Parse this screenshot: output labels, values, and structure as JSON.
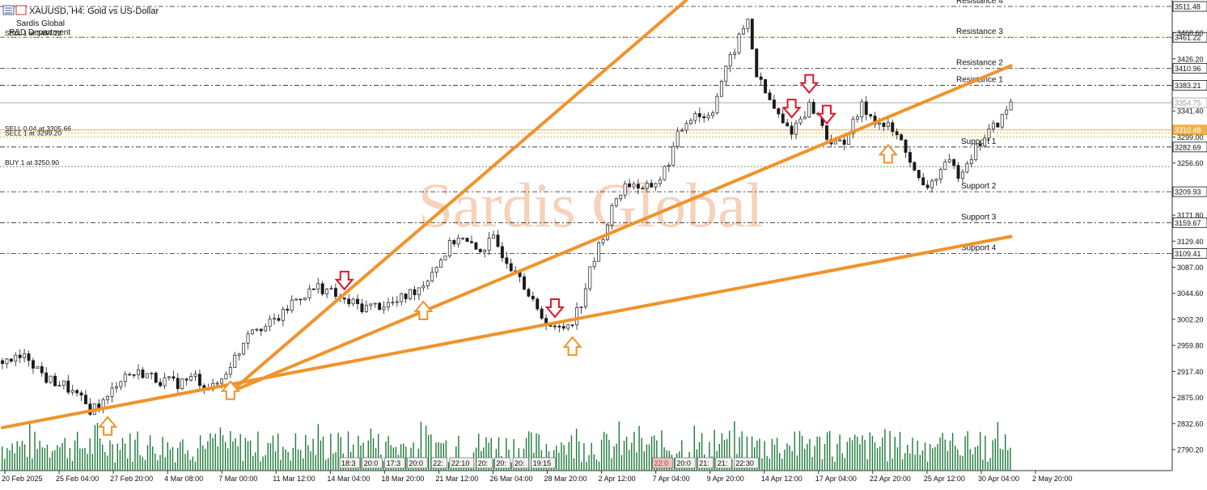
{
  "header": {
    "title": "XAUUSD, H4:  Gold vs US-Dollar",
    "company": "Sardis Global",
    "department": "R&D Department"
  },
  "watermark": "Sardis Global",
  "colors": {
    "trendline": "#f0932b",
    "arrow_down": "#e3142a",
    "arrow_up": "#f0932b",
    "candle": "#1a1a1a",
    "volume": "#1f7a3a",
    "watermark": "#f6d2bc"
  },
  "trade_labels": [
    {
      "text": "SELL 1 at 3454.22",
      "price": 3461.22
    },
    {
      "text": "SELL 0.04 at 3305.66",
      "price": 3306
    },
    {
      "text": "SELL 1 at 3299.20",
      "price": 3299.2
    },
    {
      "text": "BUY 1 at 3250.90",
      "price": 3250.9
    }
  ],
  "levels": [
    {
      "label": "Resistance 4",
      "price": 3511.48,
      "tag": "3511.48"
    },
    {
      "label": "Resistance 3",
      "price": 3461.22,
      "tag": "3461.22"
    },
    {
      "label": "Resistance 2",
      "price": 3410.96,
      "tag": "3410.96"
    },
    {
      "label": "Resistance 1",
      "price": 3383.21,
      "tag": "3383.21"
    },
    {
      "label": "Support 1",
      "price": 3282.69,
      "tag": "3282.69"
    },
    {
      "label": "Support 2",
      "price": 3209.93,
      "tag": "3209.93"
    },
    {
      "label": "Support 3",
      "price": 3159.67,
      "tag": "3159.67"
    },
    {
      "label": "Support 4",
      "price": 3109.41,
      "tag": "3109.41"
    }
  ],
  "current_price": {
    "price": 3354.75,
    "tag": "3354.75"
  },
  "ask_price": {
    "price": 3310.48,
    "tag": "3310.48"
  },
  "chart_data": {
    "type": "candlestick",
    "symbol": "XAUUSD",
    "timeframe": "H4",
    "ylim": [
      2756,
      3522
    ],
    "y_ticks": [
      2790.2,
      2832.6,
      2875.0,
      2917.4,
      2959.8,
      3002.2,
      3044.6,
      3087.0,
      3129.4,
      3171.8,
      3256.6,
      3299.0,
      3341.4,
      3426.2,
      3468.6
    ],
    "x_labels": [
      "20 Feb 2025",
      "25 Feb 04:00",
      "27 Feb 20:00",
      "4 Mar 08:00",
      "7 Mar 00:00",
      "11 Mar 12:00",
      "14 Mar 04:00",
      "18 Mar 20:00",
      "21 Mar 12:00",
      "26 Mar 04:00",
      "28 Mar 20:00",
      "2 Apr 12:00",
      "7 Apr 04:00",
      "9 Apr 20:00",
      "14 Apr 12:00",
      "17 Apr 04:00",
      "22 Apr 20:00",
      "25 Apr 12:00",
      "30 Apr 04:00",
      "2 May 20:00"
    ],
    "session_labels": [
      "18:3",
      "20:0",
      "17:3",
      "20:0",
      "22:",
      "22:10",
      "20:",
      "20:",
      "20:",
      "19:15",
      "22:0",
      "20:0",
      "21:",
      "21:",
      "22:30"
    ],
    "price_path": [
      [
        0,
        2935
      ],
      [
        3,
        2940
      ],
      [
        5,
        2905
      ],
      [
        7,
        2895
      ],
      [
        9,
        2870
      ],
      [
        10,
        2856
      ],
      [
        12,
        2872
      ],
      [
        13,
        2900
      ],
      [
        14,
        2912
      ],
      [
        16,
        2915
      ],
      [
        18,
        2903
      ],
      [
        20,
        2898
      ],
      [
        22,
        2908
      ],
      [
        23,
        2895
      ],
      [
        24,
        2890
      ],
      [
        25,
        2905
      ],
      [
        26,
        2930
      ],
      [
        27,
        2950
      ],
      [
        28,
        2985
      ],
      [
        29,
        2993
      ],
      [
        30,
        2990
      ],
      [
        32,
        3010
      ],
      [
        33,
        3030
      ],
      [
        34,
        3040
      ],
      [
        35,
        3047
      ],
      [
        36,
        3055
      ],
      [
        37,
        3050
      ],
      [
        38,
        3040
      ],
      [
        39,
        3030
      ],
      [
        40,
        3028
      ],
      [
        41,
        3022
      ],
      [
        43,
        3025
      ],
      [
        45,
        3030
      ],
      [
        46,
        3040
      ],
      [
        48,
        3060
      ],
      [
        49,
        3082
      ],
      [
        50,
        3100
      ],
      [
        51,
        3122
      ],
      [
        52,
        3138
      ],
      [
        53,
        3125
      ],
      [
        54,
        3115
      ],
      [
        55,
        3120
      ],
      [
        56,
        3132
      ],
      [
        57,
        3110
      ],
      [
        58,
        3090
      ],
      [
        59,
        3080
      ],
      [
        60,
        3040
      ],
      [
        61,
        3015
      ],
      [
        62,
        3000
      ],
      [
        63,
        2985
      ],
      [
        64,
        2990
      ],
      [
        65,
        3002
      ],
      [
        66,
        3030
      ],
      [
        67,
        3080
      ],
      [
        68,
        3120
      ],
      [
        69,
        3160
      ],
      [
        70,
        3200
      ],
      [
        71,
        3220
      ],
      [
        72,
        3225
      ],
      [
        73,
        3210
      ],
      [
        74,
        3220
      ],
      [
        75,
        3232
      ],
      [
        76,
        3260
      ],
      [
        77,
        3300
      ],
      [
        78,
        3325
      ],
      [
        79,
        3340
      ],
      [
        80,
        3330
      ],
      [
        81,
        3345
      ],
      [
        82,
        3390
      ],
      [
        83,
        3425
      ],
      [
        84,
        3460
      ],
      [
        85,
        3490
      ],
      [
        86,
        3400
      ],
      [
        87,
        3370
      ],
      [
        88,
        3345
      ],
      [
        89,
        3320
      ],
      [
        90,
        3310
      ],
      [
        91,
        3330
      ],
      [
        92,
        3350
      ],
      [
        93,
        3335
      ],
      [
        94,
        3300
      ],
      [
        95,
        3285
      ],
      [
        96,
        3295
      ],
      [
        97,
        3320
      ],
      [
        98,
        3348
      ],
      [
        99,
        3335
      ],
      [
        100,
        3320
      ],
      [
        101,
        3315
      ],
      [
        102,
        3300
      ],
      [
        103,
        3280
      ],
      [
        104,
        3240
      ],
      [
        105,
        3215
      ],
      [
        106,
        3225
      ],
      [
        107,
        3245
      ],
      [
        108,
        3255
      ],
      [
        109,
        3240
      ],
      [
        110,
        3260
      ],
      [
        111,
        3280
      ],
      [
        112,
        3300
      ],
      [
        113,
        3315
      ],
      [
        114,
        3330
      ],
      [
        115,
        3354.75
      ]
    ],
    "trendlines": [
      {
        "from": [
          0,
          2826
        ],
        "to": [
          115,
          3137
        ]
      },
      {
        "from": [
          26,
          2884
        ],
        "to": [
          78,
          3522
        ]
      },
      {
        "from": [
          26,
          2884
        ],
        "to": [
          115,
          3415
        ]
      }
    ],
    "arrows_down": [
      39,
      63,
      90,
      92,
      94
    ],
    "arrows_up": [
      12,
      26,
      48,
      65,
      101
    ]
  }
}
